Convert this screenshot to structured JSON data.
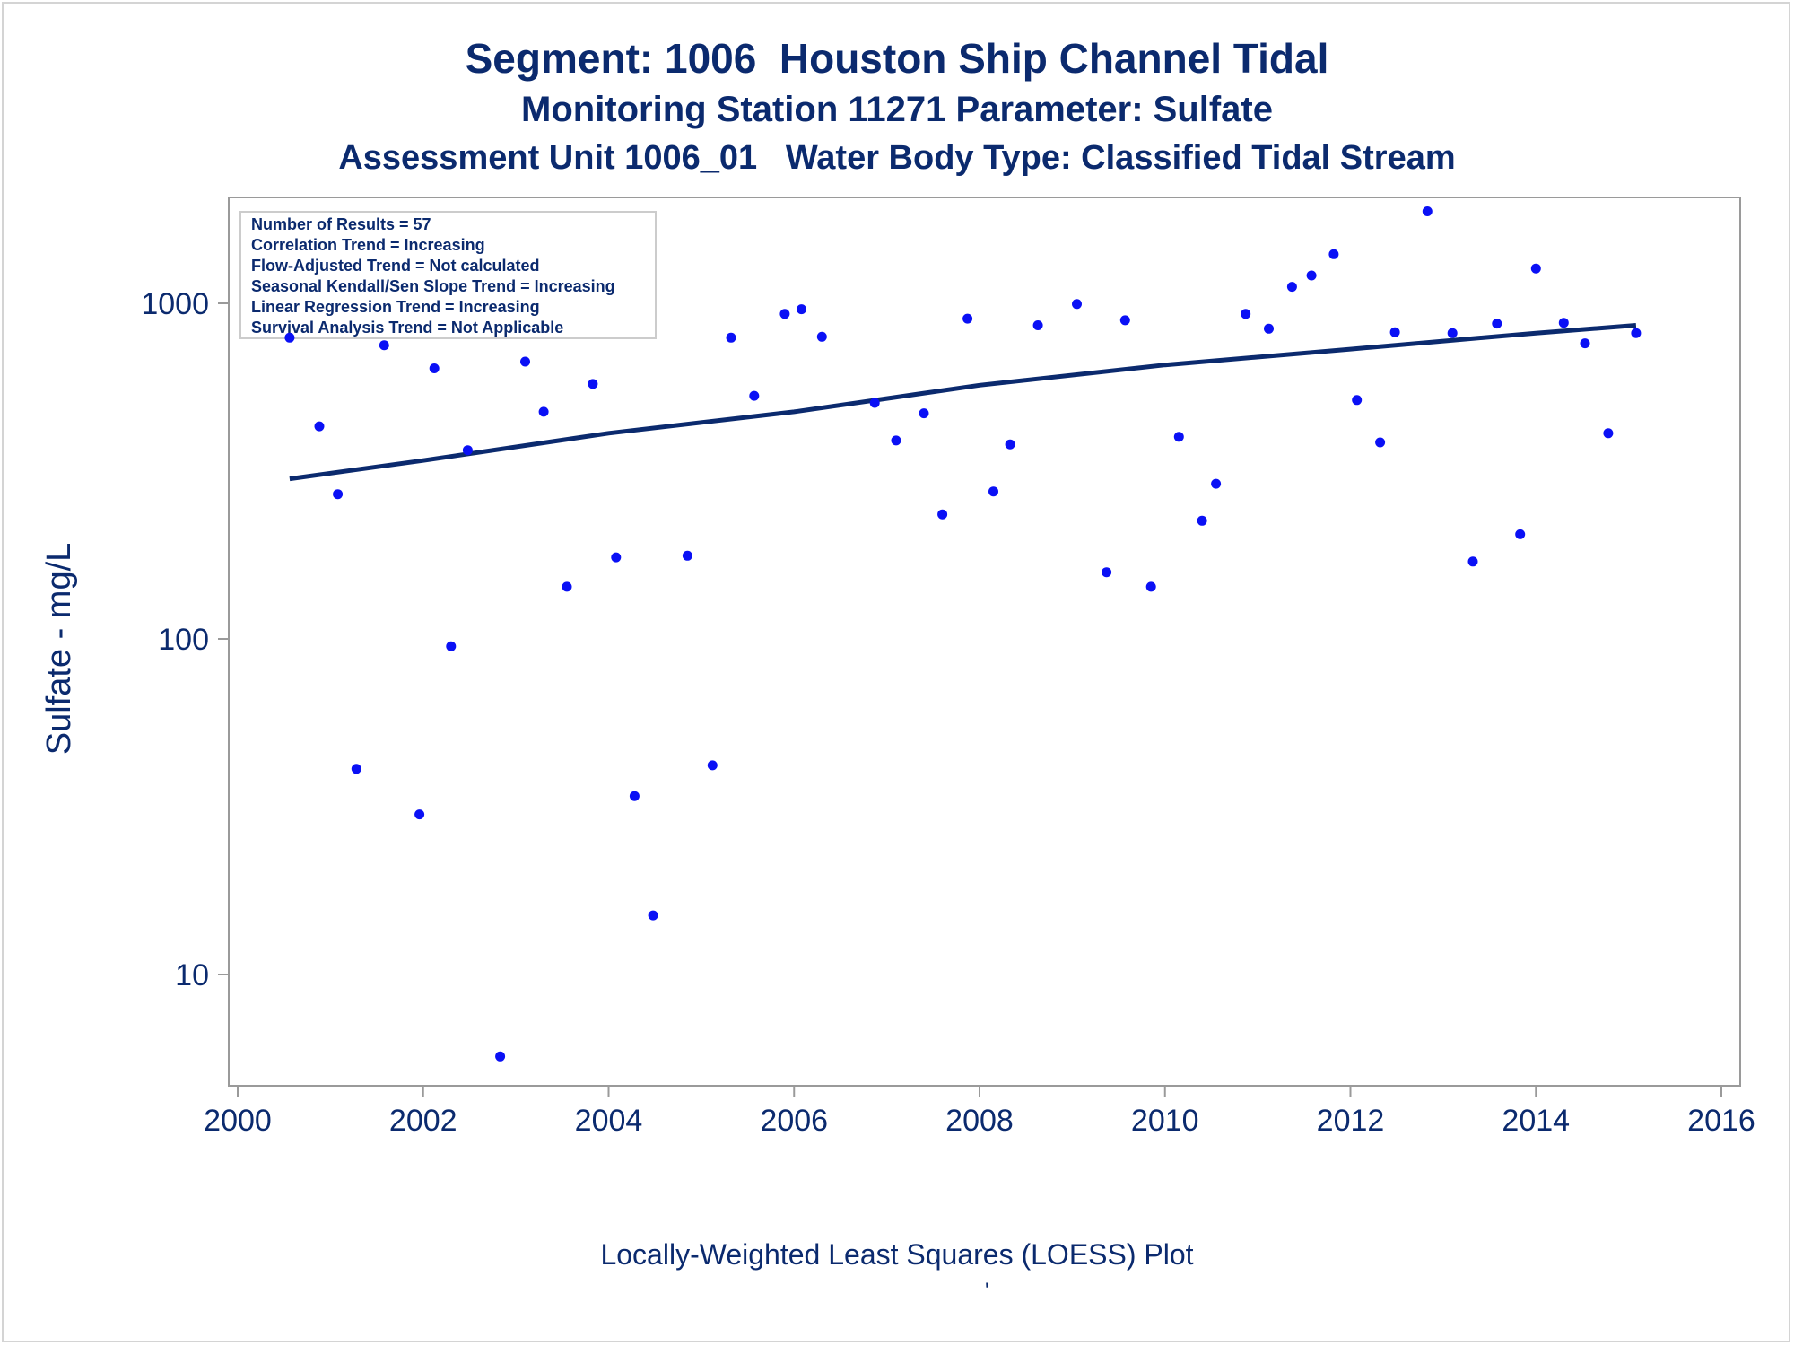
{
  "chart_data": {
    "type": "scatter",
    "title": "Segment: 1006  Houston Ship Channel Tidal",
    "subtitle": "Monitoring Station 11271 Parameter: Sulfate",
    "subtitle2": "Assessment Unit 1006_01   Water Body Type: Classified Tidal Stream",
    "xlabel": "",
    "ylabel": "Sulfate - mg/L",
    "footnote": "Locally-Weighted Least Squares (LOESS) Plot",
    "footnote_mark": "'",
    "xlim": [
      2000,
      2016
    ],
    "ylim": [
      6,
      2200
    ],
    "yscale": "log",
    "x_ticks": [
      "2000",
      "2002",
      "2004",
      "2006",
      "2008",
      "2010",
      "2012",
      "2014",
      "2016"
    ],
    "y_ticks": [
      "10",
      "100",
      "1000"
    ],
    "grid": false,
    "legend_placement": "top-left",
    "stats_box": [
      "Number of Results = 57",
      "Correlation Trend = Increasing",
      "Flow-Adjusted Trend = Not calculated",
      "Seasonal Kendall/Sen Slope Trend = Increasing",
      "Linear Regression Trend = Increasing",
      "Survival Analysis Trend = Not Applicable"
    ],
    "points": [
      {
        "x": 2000.56,
        "y": 790
      },
      {
        "x": 2000.88,
        "y": 430
      },
      {
        "x": 2001.08,
        "y": 270
      },
      {
        "x": 2001.28,
        "y": 41
      },
      {
        "x": 2001.58,
        "y": 750
      },
      {
        "x": 2001.96,
        "y": 30
      },
      {
        "x": 2002.12,
        "y": 640
      },
      {
        "x": 2002.3,
        "y": 95
      },
      {
        "x": 2002.48,
        "y": 365
      },
      {
        "x": 2002.83,
        "y": 5.7
      },
      {
        "x": 2003.1,
        "y": 670
      },
      {
        "x": 2003.3,
        "y": 475
      },
      {
        "x": 2003.55,
        "y": 143
      },
      {
        "x": 2003.83,
        "y": 575
      },
      {
        "x": 2004.08,
        "y": 175
      },
      {
        "x": 2004.28,
        "y": 34
      },
      {
        "x": 2004.48,
        "y": 15
      },
      {
        "x": 2004.85,
        "y": 177
      },
      {
        "x": 2005.12,
        "y": 42
      },
      {
        "x": 2005.32,
        "y": 790
      },
      {
        "x": 2005.57,
        "y": 530
      },
      {
        "x": 2005.9,
        "y": 930
      },
      {
        "x": 2006.08,
        "y": 960
      },
      {
        "x": 2006.3,
        "y": 795
      },
      {
        "x": 2006.87,
        "y": 505
      },
      {
        "x": 2007.1,
        "y": 390
      },
      {
        "x": 2007.4,
        "y": 470
      },
      {
        "x": 2007.6,
        "y": 235
      },
      {
        "x": 2007.87,
        "y": 900
      },
      {
        "x": 2008.15,
        "y": 275
      },
      {
        "x": 2008.33,
        "y": 380
      },
      {
        "x": 2008.63,
        "y": 860
      },
      {
        "x": 2009.05,
        "y": 995
      },
      {
        "x": 2009.37,
        "y": 158
      },
      {
        "x": 2009.57,
        "y": 890
      },
      {
        "x": 2009.85,
        "y": 143
      },
      {
        "x": 2010.15,
        "y": 400
      },
      {
        "x": 2010.4,
        "y": 225
      },
      {
        "x": 2010.55,
        "y": 290
      },
      {
        "x": 2010.87,
        "y": 930
      },
      {
        "x": 2011.12,
        "y": 840
      },
      {
        "x": 2011.37,
        "y": 1120
      },
      {
        "x": 2011.58,
        "y": 1210
      },
      {
        "x": 2011.82,
        "y": 1400
      },
      {
        "x": 2012.07,
        "y": 515
      },
      {
        "x": 2012.32,
        "y": 385
      },
      {
        "x": 2012.48,
        "y": 820
      },
      {
        "x": 2012.83,
        "y": 1880
      },
      {
        "x": 2013.1,
        "y": 815
      },
      {
        "x": 2013.32,
        "y": 170
      },
      {
        "x": 2013.58,
        "y": 870
      },
      {
        "x": 2013.83,
        "y": 205
      },
      {
        "x": 2014.0,
        "y": 1270
      },
      {
        "x": 2014.3,
        "y": 875
      },
      {
        "x": 2014.53,
        "y": 760
      },
      {
        "x": 2014.78,
        "y": 410
      },
      {
        "x": 2015.08,
        "y": 815
      }
    ],
    "trend_line": {
      "x": [
        2000.56,
        2002,
        2004,
        2006,
        2008,
        2010,
        2012,
        2014,
        2015.08
      ],
      "y": [
        300,
        340,
        410,
        475,
        570,
        655,
        730,
        815,
        860
      ]
    }
  }
}
